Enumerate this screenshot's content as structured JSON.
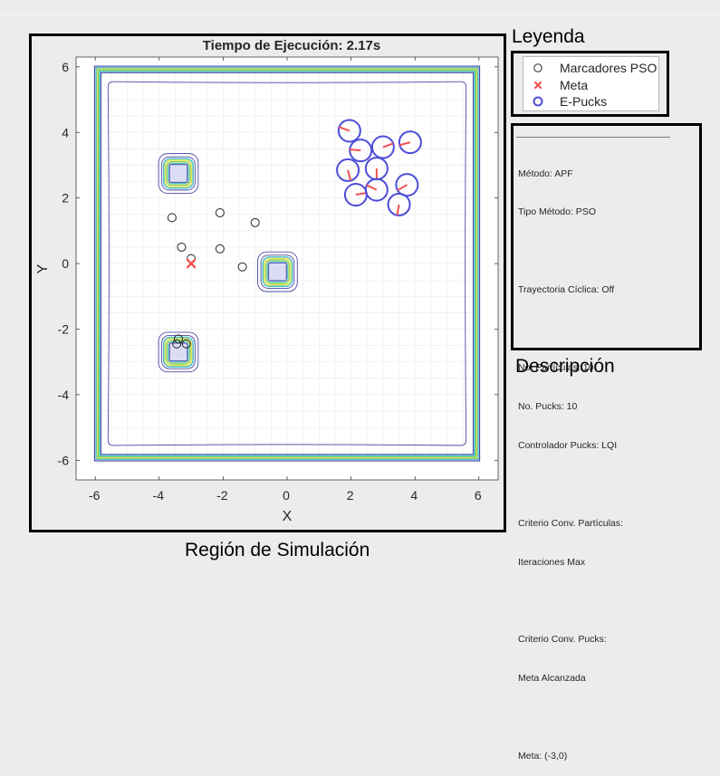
{
  "captions": {
    "legend": "Leyenda",
    "description": "Descripción",
    "simulation": "Región de Simulación"
  },
  "legend": {
    "items": [
      {
        "label": "Marcadores PSO",
        "symbol": "circle-open",
        "color": "#262626"
      },
      {
        "label": "Meta",
        "symbol": "x-marker",
        "color": "#f05050"
      },
      {
        "label": "E-Pucks",
        "symbol": "circle-thick",
        "color": "#4d4dd9"
      }
    ]
  },
  "description": {
    "lines": [
      "Método: APF",
      "Tipo Método: PSO",
      "",
      "Trayectoria Cíclica: Off",
      "",
      "No. Partículas: 10",
      "No. Pucks: 10",
      "Controlador Pucks: LQI",
      "",
      "Criterio Conv. Partículas:",
      "Iteraciones Max",
      "",
      "Criterio Conv. Pucks:",
      "Meta Alcanzada",
      "",
      "Meta: (-3,0)"
    ]
  },
  "colors": {
    "field_background": "#dcdcf5",
    "contour_outer": "#4b4ba8",
    "contour_cyan": "#4fc1c9",
    "contour_yellow": "#e1e34f",
    "contour_green": "#8ad46b",
    "epuck": "#4d4dd9",
    "heading": "#f05050",
    "goal": "#f05050",
    "marker": "#262626"
  },
  "chart_data": {
    "type": "scatter",
    "title": "Tiempo de Ejecución: 2.17s",
    "xlabel": "X",
    "ylabel": "Y",
    "xlim": [
      -6.6,
      6.6
    ],
    "ylim": [
      -6.6,
      6.3
    ],
    "xticks": [
      -6,
      -4,
      -2,
      0,
      2,
      4,
      6
    ],
    "yticks": [
      -6,
      -4,
      -2,
      0,
      2,
      4,
      6
    ],
    "grid": true,
    "legend_position": "outside-right",
    "arena": {
      "xmin": -6,
      "xmax": 6,
      "ymin": -6,
      "ymax": 6
    },
    "obstacles": [
      {
        "x": -3.4,
        "y": 2.75,
        "size": 0.5
      },
      {
        "x": -0.3,
        "y": -0.25,
        "size": 0.5
      },
      {
        "x": -3.4,
        "y": -2.7,
        "size": 0.5
      }
    ],
    "pso_markers": [
      {
        "x": -3.6,
        "y": 1.4
      },
      {
        "x": -2.1,
        "y": 1.55
      },
      {
        "x": -1.0,
        "y": 1.25
      },
      {
        "x": -3.3,
        "y": 0.5
      },
      {
        "x": -2.1,
        "y": 0.45
      },
      {
        "x": -3.0,
        "y": 0.15
      },
      {
        "x": -1.4,
        "y": -0.1
      },
      {
        "x": -3.4,
        "y": -2.3
      },
      {
        "x": -3.45,
        "y": -2.45
      },
      {
        "x": -3.15,
        "y": -2.45
      }
    ],
    "goal": {
      "x": -3,
      "y": 0
    },
    "epucks": [
      {
        "x": 1.95,
        "y": 4.05,
        "heading": 160
      },
      {
        "x": 2.3,
        "y": 3.45,
        "heading": 175
      },
      {
        "x": 3.0,
        "y": 3.55,
        "heading": 20
      },
      {
        "x": 3.85,
        "y": 3.7,
        "heading": -165
      },
      {
        "x": 1.9,
        "y": 2.85,
        "heading": -75
      },
      {
        "x": 2.8,
        "y": 2.9,
        "heading": -90
      },
      {
        "x": 2.15,
        "y": 2.1,
        "heading": 10
      },
      {
        "x": 2.8,
        "y": 2.25,
        "heading": 155
      },
      {
        "x": 3.75,
        "y": 2.4,
        "heading": -150
      },
      {
        "x": 3.5,
        "y": 1.8,
        "heading": -100
      }
    ]
  }
}
